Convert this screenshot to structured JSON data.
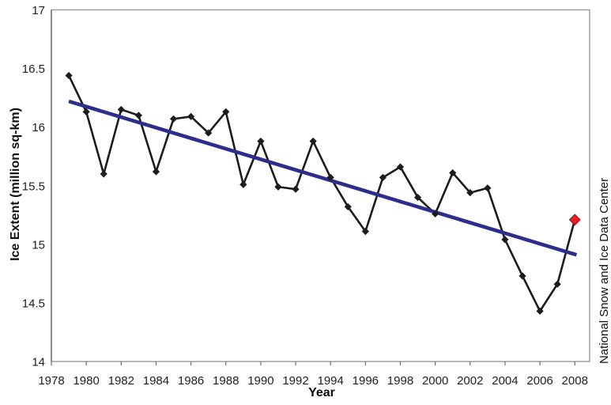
{
  "chart_data": {
    "type": "line",
    "title": "",
    "xlabel": "Year",
    "ylabel": "Ice Extent (million sq-km)",
    "watermark": "National Snow and Ice Data Center",
    "xlim": [
      1978,
      2008.85
    ],
    "ylim": [
      14,
      17
    ],
    "x_ticks": [
      1978,
      1980,
      1982,
      1984,
      1986,
      1988,
      1990,
      1992,
      1994,
      1996,
      1998,
      2000,
      2002,
      2004,
      2006,
      2008
    ],
    "y_ticks": [
      14,
      14.5,
      15,
      15.5,
      16,
      16.5,
      17
    ],
    "grid": false,
    "legend_position": "none",
    "series": [
      {
        "name": "Ice extent",
        "color": "#1c1c1c",
        "marker": "diamond",
        "x": [
          1979,
          1980,
          1981,
          1982,
          1983,
          1984,
          1985,
          1986,
          1987,
          1988,
          1989,
          1990,
          1991,
          1992,
          1993,
          1994,
          1995,
          1996,
          1997,
          1998,
          1999,
          2000,
          2001,
          2002,
          2003,
          2004,
          2005,
          2006,
          2007,
          2008
        ],
        "values": [
          16.44,
          16.13,
          15.6,
          16.15,
          16.1,
          15.62,
          16.07,
          16.09,
          15.95,
          16.13,
          15.51,
          15.88,
          15.49,
          15.47,
          15.88,
          15.57,
          15.32,
          15.11,
          15.57,
          15.66,
          15.4,
          15.26,
          15.61,
          15.44,
          15.48,
          15.04,
          14.73,
          14.43,
          14.66,
          15.21
        ]
      }
    ],
    "highlight_point": {
      "x": 2008,
      "value": 15.21,
      "color": "#ea1d25",
      "marker": "diamond-large"
    },
    "trendline": {
      "x": [
        1979,
        2008.1
      ],
      "values": [
        16.22,
        14.91
      ],
      "color": "#2d2d8c"
    }
  }
}
